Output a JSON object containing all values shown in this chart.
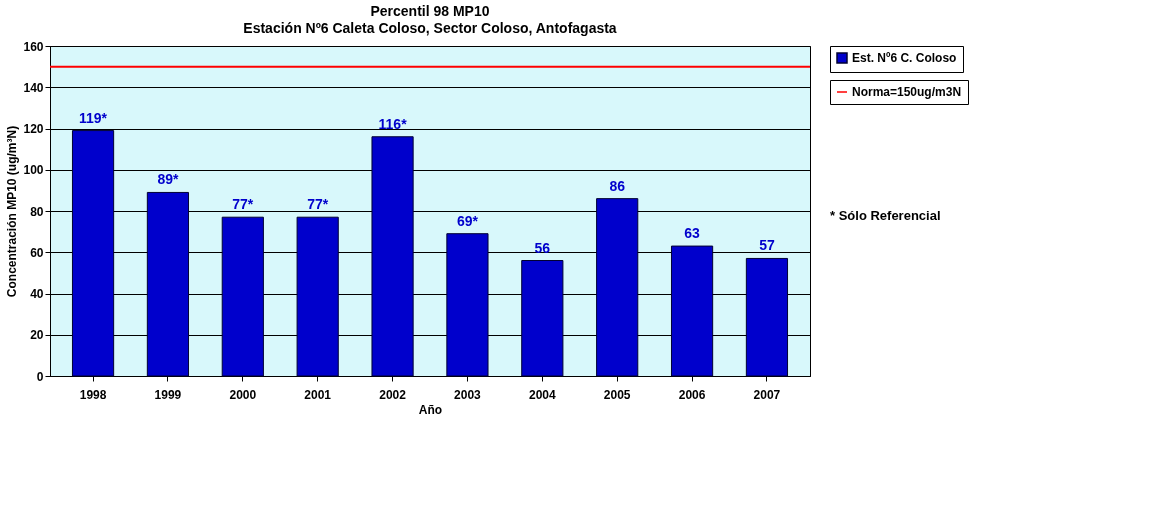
{
  "chart_data": {
    "type": "bar",
    "title": "Percentil 98 MP10",
    "subtitle": "Estación Nº6 Caleta Coloso, Sector Coloso, Antofagasta",
    "xlabel": "Año",
    "ylabel": "Concentración MP10 (ug/m³N)",
    "categories": [
      "1998",
      "1999",
      "2000",
      "2001",
      "2002",
      "2003",
      "2004",
      "2005",
      "2006",
      "2007"
    ],
    "series": [
      {
        "name": "Est. Nº6 C. Coloso",
        "color": "#0000cc",
        "values": [
          119,
          89,
          77,
          77,
          116,
          69,
          56,
          86,
          63,
          57
        ],
        "value_labels": [
          "119*",
          "89*",
          "77*",
          "77*",
          "116*",
          "69*",
          "56",
          "86",
          "63",
          "57"
        ]
      }
    ],
    "ylim": [
      0,
      160
    ],
    "yticks": [
      0,
      20,
      40,
      60,
      80,
      100,
      120,
      140,
      160
    ],
    "grid": "y",
    "legend": "right",
    "ref_lines": [
      {
        "axis": "y",
        "value": 150,
        "label": "Norma=150ug/m3N",
        "color": "#ff0000",
        "line_style": "solid"
      }
    ],
    "annotations": [
      "* Sólo Referencial"
    ]
  }
}
